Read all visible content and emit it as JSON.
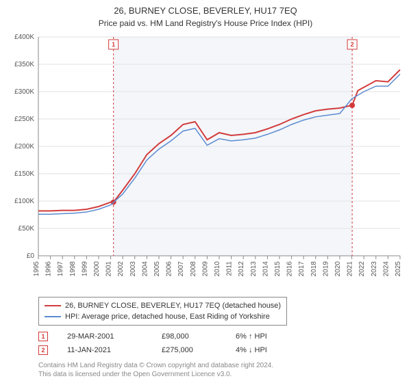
{
  "title": "26, BURNEY CLOSE, BEVERLEY, HU17 7EQ",
  "subtitle": "Price paid vs. HM Land Registry's House Price Index (HPI)",
  "chart": {
    "type": "line",
    "background_color": "#ffffff",
    "plot_band_color": "#f4f6fa",
    "grid_color": "#e2e2e2",
    "axis_color": "#888888",
    "tick_label_color": "#555555",
    "tick_fontsize": 10,
    "x": {
      "min": 1995,
      "max": 2025,
      "ticks": [
        1995,
        1996,
        1997,
        1998,
        1999,
        2000,
        2001,
        2002,
        2003,
        2004,
        2005,
        2006,
        2007,
        2008,
        2009,
        2010,
        2011,
        2012,
        2013,
        2014,
        2015,
        2016,
        2017,
        2018,
        2019,
        2020,
        2021,
        2022,
        2023,
        2024,
        2025
      ],
      "rotate": -90
    },
    "y": {
      "min": 0,
      "max": 400000,
      "ticks": [
        0,
        50000,
        100000,
        150000,
        200000,
        250000,
        300000,
        350000,
        400000
      ],
      "labels": [
        "£0",
        "£50K",
        "£100K",
        "£150K",
        "£200K",
        "£250K",
        "£300K",
        "£350K",
        "£400K"
      ]
    },
    "plot_band": {
      "from": 2001.23,
      "to": 2021.03
    },
    "marker_lines": [
      {
        "x": 2001.23,
        "label": "1",
        "color": "#d23a3a",
        "dash": "3,3"
      },
      {
        "x": 2021.03,
        "label": "2",
        "color": "#d23a3a",
        "dash": "3,3"
      }
    ],
    "series": [
      {
        "name": "subject",
        "color": "#d23a3a",
        "width": 2,
        "data": [
          [
            1995,
            82000
          ],
          [
            1996,
            82000
          ],
          [
            1997,
            83000
          ],
          [
            1998,
            83000
          ],
          [
            1999,
            85000
          ],
          [
            2000,
            90000
          ],
          [
            2001,
            98000
          ],
          [
            2001.23,
            98000
          ],
          [
            2002,
            120000
          ],
          [
            2003,
            150000
          ],
          [
            2004,
            185000
          ],
          [
            2005,
            205000
          ],
          [
            2006,
            220000
          ],
          [
            2007,
            240000
          ],
          [
            2008,
            245000
          ],
          [
            2009,
            212000
          ],
          [
            2010,
            225000
          ],
          [
            2011,
            220000
          ],
          [
            2012,
            222000
          ],
          [
            2013,
            225000
          ],
          [
            2014,
            232000
          ],
          [
            2015,
            240000
          ],
          [
            2016,
            250000
          ],
          [
            2017,
            258000
          ],
          [
            2018,
            265000
          ],
          [
            2019,
            268000
          ],
          [
            2020,
            270000
          ],
          [
            2021,
            275000
          ],
          [
            2021.03,
            275000
          ],
          [
            2021.5,
            302000
          ],
          [
            2022,
            308000
          ],
          [
            2023,
            320000
          ],
          [
            2024,
            318000
          ],
          [
            2025,
            340000
          ]
        ],
        "marker": {
          "shape": "circle",
          "color": "#d23a3a",
          "size": 4,
          "at": [
            [
              2001.23,
              98000
            ],
            [
              2021.03,
              275000
            ]
          ]
        }
      },
      {
        "name": "hpi",
        "color": "#5b8bd0",
        "width": 1.5,
        "data": [
          [
            1995,
            76000
          ],
          [
            1996,
            76000
          ],
          [
            1997,
            77000
          ],
          [
            1998,
            78000
          ],
          [
            1999,
            80000
          ],
          [
            2000,
            85000
          ],
          [
            2001,
            93000
          ],
          [
            2002,
            113000
          ],
          [
            2003,
            142000
          ],
          [
            2004,
            175000
          ],
          [
            2005,
            195000
          ],
          [
            2006,
            210000
          ],
          [
            2007,
            228000
          ],
          [
            2008,
            233000
          ],
          [
            2009,
            202000
          ],
          [
            2010,
            214000
          ],
          [
            2011,
            210000
          ],
          [
            2012,
            212000
          ],
          [
            2013,
            215000
          ],
          [
            2014,
            222000
          ],
          [
            2015,
            230000
          ],
          [
            2016,
            240000
          ],
          [
            2017,
            248000
          ],
          [
            2018,
            254000
          ],
          [
            2019,
            257000
          ],
          [
            2020,
            260000
          ],
          [
            2021,
            287000
          ],
          [
            2022,
            300000
          ],
          [
            2023,
            310000
          ],
          [
            2024,
            310000
          ],
          [
            2025,
            332000
          ]
        ]
      }
    ]
  },
  "legend": {
    "items": [
      {
        "color": "#d23a3a",
        "label": "26, BURNEY CLOSE, BEVERLEY, HU17 7EQ (detached house)"
      },
      {
        "color": "#5b8bd0",
        "label": "HPI: Average price, detached house, East Riding of Yorkshire"
      }
    ]
  },
  "markers": [
    {
      "badge": "1",
      "date": "29-MAR-2001",
      "price": "£98,000",
      "pct": "6% ↑ HPI"
    },
    {
      "badge": "2",
      "date": "11-JAN-2021",
      "price": "£275,000",
      "pct": "4% ↓ HPI"
    }
  ],
  "footnote_line1": "Contains HM Land Registry data © Crown copyright and database right 2024.",
  "footnote_line2": "This data is licensed under the Open Government Licence v3.0."
}
